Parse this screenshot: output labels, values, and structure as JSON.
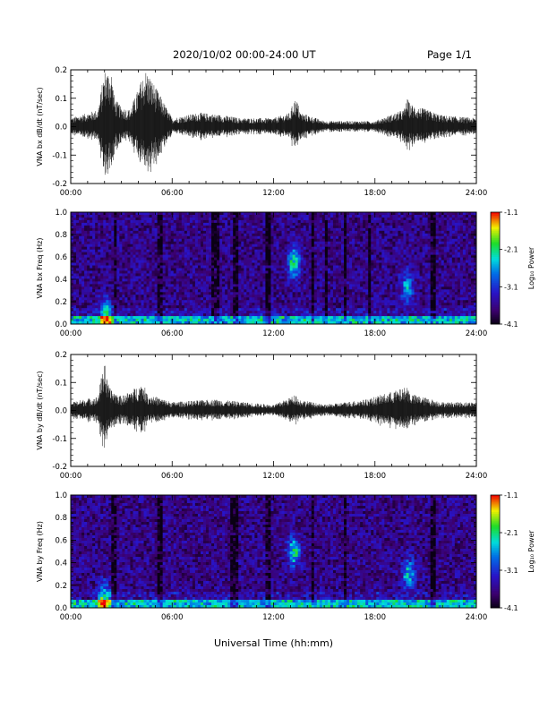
{
  "header": {
    "title": "2020/10/02  00:00-24:00 UT",
    "page": "Page 1/1"
  },
  "xaxis": {
    "label": "Universal Time (hh:mm)",
    "range_hours": [
      0,
      24
    ],
    "ticks": [
      "00:00",
      "06:00",
      "12:00",
      "18:00",
      "24:00"
    ]
  },
  "colorbar": {
    "label": "Log₁₀ Power",
    "ticks": [
      "-1.1",
      "-2.1",
      "-3.1",
      "-4.1"
    ],
    "range": [
      -4.1,
      -1.1
    ]
  },
  "chart_data": [
    {
      "type": "line",
      "ylabel": "VNA bx dB/dt (nT/sec)",
      "ylim": [
        -0.2,
        0.2
      ],
      "yticks": [
        "0.2",
        "0.1",
        "0.0",
        "-0.1",
        "-0.2"
      ],
      "baseline_amplitude": 0.02,
      "series": [
        {
          "x_hours": [
            0.0,
            1.6,
            2.0,
            2.1,
            2.2,
            2.4,
            2.6,
            3.0,
            3.5,
            3.9,
            4.4,
            4.5,
            6.0,
            7.6,
            9.1,
            10.0,
            12.0,
            13.0,
            13.2,
            13.4,
            13.6,
            15.0,
            18.0,
            19.7,
            19.9,
            20.1,
            22.0,
            24.0
          ],
          "envelope": [
            0.03,
            0.06,
            0.2,
            0.2,
            0.2,
            0.2,
            0.1,
            0.07,
            0.06,
            0.12,
            0.2,
            0.2,
            0.03,
            0.05,
            0.04,
            0.03,
            0.03,
            0.05,
            0.1,
            0.09,
            0.05,
            0.02,
            0.02,
            0.06,
            0.1,
            0.08,
            0.04,
            0.03
          ]
        }
      ]
    },
    {
      "type": "heatmap",
      "ylabel": "VNA bx Freq (Hz)",
      "ylim": [
        0,
        1.0
      ],
      "yticks": [
        "1.0",
        "0.8",
        "0.6",
        "0.4",
        "0.2",
        "0.0"
      ],
      "zlim": [
        -4.1,
        -1.1
      ],
      "quiet_bands_hours": [
        [
          2.5,
          2.7
        ],
        [
          5.1,
          5.4
        ],
        [
          8.3,
          8.8
        ],
        [
          9.6,
          9.9
        ],
        [
          11.5,
          11.9
        ],
        [
          14.2,
          14.4
        ],
        [
          15.0,
          15.2
        ],
        [
          16.1,
          16.3
        ],
        [
          17.6,
          17.8
        ],
        [
          21.3,
          21.6
        ]
      ],
      "enhancements": [
        {
          "x_hours": 13.2,
          "freq_hz": 0.55,
          "z": -2.3
        },
        {
          "x_hours": 19.9,
          "freq_hz": 0.33,
          "z": -2.7
        },
        {
          "x_hours": 2.1,
          "freq_hz": 0.08,
          "z": -2.2
        }
      ]
    },
    {
      "type": "line",
      "ylabel": "VNA by dB/dt (nT/sec)",
      "ylim": [
        -0.2,
        0.2
      ],
      "yticks": [
        "0.2",
        "0.1",
        "0.0",
        "-0.1",
        "-0.2"
      ],
      "baseline_amplitude": 0.02,
      "series": [
        {
          "x_hours": [
            0.0,
            1.6,
            1.9,
            2.0,
            2.1,
            2.3,
            3.0,
            4.3,
            4.5,
            6.0,
            8.5,
            12.0,
            13.1,
            13.3,
            13.5,
            15.0,
            17.5,
            19.7,
            19.9,
            20.1,
            22.0,
            24.0
          ],
          "envelope": [
            0.03,
            0.05,
            0.15,
            0.2,
            0.12,
            0.08,
            0.05,
            0.1,
            0.06,
            0.03,
            0.04,
            0.02,
            0.05,
            0.06,
            0.04,
            0.02,
            0.04,
            0.08,
            0.09,
            0.06,
            0.03,
            0.03
          ]
        }
      ]
    },
    {
      "type": "heatmap",
      "ylabel": "VNA by Freq (Hz)",
      "ylim": [
        0,
        1.0
      ],
      "yticks": [
        "1.0",
        "0.8",
        "0.6",
        "0.4",
        "0.2",
        "0.0"
      ],
      "zlim": [
        -4.1,
        -1.1
      ],
      "quiet_bands_hours": [
        [
          2.4,
          2.7
        ],
        [
          5.1,
          5.4
        ],
        [
          9.5,
          9.9
        ],
        [
          11.6,
          11.9
        ],
        [
          14.2,
          14.4
        ],
        [
          16.1,
          16.3
        ],
        [
          21.3,
          21.6
        ]
      ],
      "enhancements": [
        {
          "x_hours": 13.2,
          "freq_hz": 0.5,
          "z": -2.4
        },
        {
          "x_hours": 20.0,
          "freq_hz": 0.3,
          "z": -2.6
        },
        {
          "x_hours": 2.0,
          "freq_hz": 0.08,
          "z": -2.2
        }
      ]
    }
  ]
}
